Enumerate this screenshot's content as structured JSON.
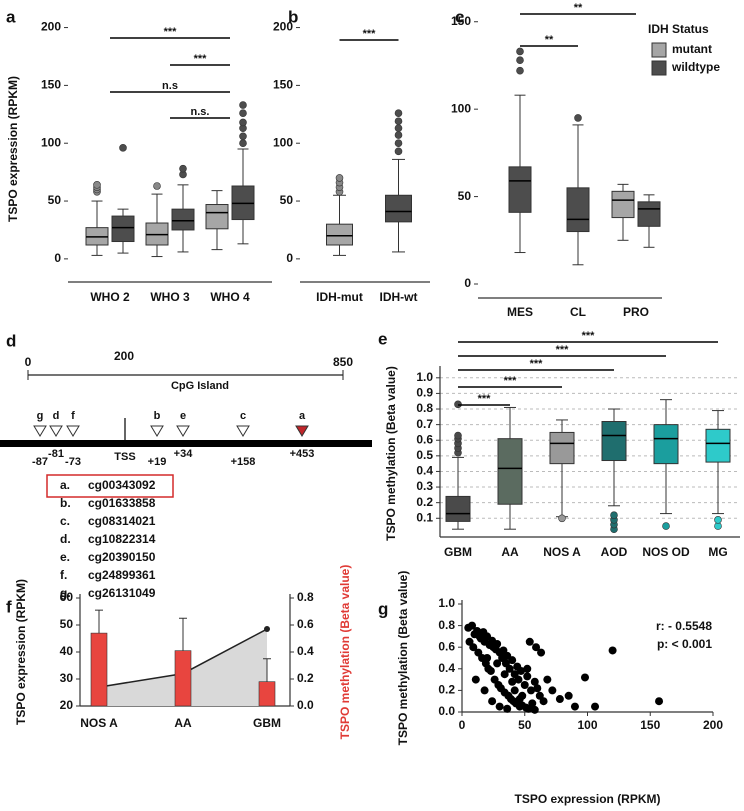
{
  "chart_data": [
    {
      "type": "box",
      "panel_label": "a",
      "ylabel": "TSPO expression (RPKM)",
      "categories": [
        "WHO 2",
        "WHO 3",
        "WHO 4"
      ],
      "series": [
        {
          "color": "#a6a6a6",
          "values": [
            {
              "min": 3,
              "q1": 12,
              "median": 19,
              "q3": 27,
              "max": 50,
              "outliers": [
                58,
                60,
                62,
                64
              ]
            },
            {
              "min": 2,
              "q1": 12,
              "median": 21,
              "q3": 31,
              "max": 56,
              "outliers": [
                63
              ]
            },
            {
              "min": 8,
              "q1": 26,
              "median": 40,
              "q3": 47,
              "max": 59,
              "outliers": []
            }
          ]
        },
        {
          "color": "#4d4d4d",
          "values": [
            {
              "min": 5,
              "q1": 15,
              "median": 27,
              "q3": 37,
              "max": 43,
              "outliers": [
                96
              ]
            },
            {
              "min": 6,
              "q1": 25,
              "median": 33,
              "q3": 43,
              "max": 64,
              "outliers": [
                73,
                78
              ]
            },
            {
              "min": 13,
              "q1": 34,
              "median": 48,
              "q3": 63,
              "max": 95,
              "outliers": [
                100,
                106,
                113,
                118,
                126,
                133
              ]
            }
          ]
        }
      ],
      "ylim": [
        -20,
        210
      ],
      "yticks": [
        0,
        50,
        100,
        150,
        200
      ],
      "annotations": [
        "***",
        "***",
        "n.s",
        "n.s."
      ]
    },
    {
      "type": "box",
      "panel_label": "b",
      "categories": [
        "IDH-mut",
        "IDH-wt"
      ],
      "series": [
        {
          "colors": [
            "#a6a6a6",
            "#4d4d4d"
          ],
          "values": [
            {
              "min": 3,
              "q1": 12,
              "median": 20,
              "q3": 30,
              "max": 55,
              "outliers": [
                58,
                62,
                66,
                70
              ]
            },
            {
              "min": 6,
              "q1": 32,
              "median": 41,
              "q3": 55,
              "max": 86,
              "outliers": [
                93,
                100,
                107,
                113,
                119,
                126
              ]
            }
          ]
        }
      ],
      "ylim": [
        -20,
        210
      ],
      "yticks": [
        0,
        50,
        100,
        150,
        200
      ],
      "annotations": [
        "***"
      ]
    },
    {
      "type": "box",
      "panel_label": "c",
      "legend_title": "IDH Status",
      "legend": "upper right",
      "categories": [
        "MES",
        "CL",
        "PRO"
      ],
      "series": [
        {
          "name": "mutant",
          "color": "#a6a6a6",
          "values": [
            null,
            null,
            {
              "min": 25,
              "q1": 38,
              "median": 48,
              "q3": 53,
              "max": 57,
              "outliers": []
            }
          ]
        },
        {
          "name": "wildtype",
          "color": "#4d4d4d",
          "values": [
            {
              "min": 18,
              "q1": 41,
              "median": 59,
              "q3": 67,
              "max": 108,
              "outliers": [
                122,
                128,
                133
              ]
            },
            {
              "min": 11,
              "q1": 30,
              "median": 37,
              "q3": 55,
              "max": 91,
              "outliers": [
                95
              ]
            },
            {
              "min": 21,
              "q1": 33,
              "median": 43,
              "q3": 47,
              "max": 51,
              "outliers": []
            }
          ]
        }
      ],
      "ylim": [
        -8,
        155
      ],
      "yticks": [
        0,
        50,
        100,
        150
      ],
      "annotations": [
        "**",
        "**"
      ]
    },
    {
      "type": "box",
      "panel_label": "e",
      "ylabel": "TSPO methylation (Beta value)",
      "categories": [
        "GBM",
        "AA",
        "NOS A",
        "AOD",
        "NOS OD",
        "MG"
      ],
      "series": [
        {
          "colors": [
            "#4a4a4a",
            "#5b6b60",
            "#999999",
            "#1f6e6e",
            "#1b9e9e",
            "#2ecaca"
          ],
          "values": [
            {
              "min": 0.03,
              "q1": 0.08,
              "median": 0.13,
              "q3": 0.24,
              "max": 0.49,
              "outliers": [
                0.52,
                0.55,
                0.58,
                0.61,
                0.63,
                0.83
              ]
            },
            {
              "min": 0.03,
              "q1": 0.19,
              "median": 0.42,
              "q3": 0.61,
              "max": 0.81,
              "outliers": []
            },
            {
              "min": 0.11,
              "q1": 0.45,
              "median": 0.58,
              "q3": 0.65,
              "max": 0.73,
              "outliers": [
                0.1
              ]
            },
            {
              "min": 0.18,
              "q1": 0.47,
              "median": 0.63,
              "q3": 0.72,
              "max": 0.8,
              "outliers": [
                0.03,
                0.06,
                0.09,
                0.12
              ]
            },
            {
              "min": 0.13,
              "q1": 0.45,
              "median": 0.61,
              "q3": 0.7,
              "max": 0.86,
              "outliers": [
                0.05
              ]
            },
            {
              "min": 0.13,
              "q1": 0.46,
              "median": 0.58,
              "q3": 0.67,
              "max": 0.79,
              "outliers": [
                0.05,
                0.09
              ]
            }
          ]
        }
      ],
      "ylim": [
        -0.02,
        1.05
      ],
      "yticks": [
        0.1,
        0.2,
        0.3,
        0.4,
        0.5,
        0.6,
        0.7,
        0.8,
        0.9,
        {
          "value": 1,
          "label": "1.0"
        }
      ],
      "grid": true,
      "annotations": [
        "***",
        "***",
        "***",
        "***",
        "***"
      ]
    },
    {
      "type": "bar",
      "panel_label": "f",
      "ylabel": "TSPO expression (RPKM)",
      "y2label": "TSPO methylation (Beta value)",
      "y2label_color": "#e03a35",
      "categories": [
        "NOS A",
        "AA",
        "GBM"
      ],
      "series": [
        {
          "color": "#e8453f",
          "values": [
            47,
            40.5,
            29
          ],
          "errors": [
            8.5,
            12,
            8.5
          ]
        },
        {
          "type": "line",
          "axis": "y2",
          "color": "#222222",
          "fill": "#d9d9d9",
          "values": [
            0.14,
            0.24,
            0.57
          ]
        }
      ],
      "ylim": [
        20,
        60
      ],
      "yticks": [
        20,
        30,
        40,
        50,
        60
      ],
      "y2lim": [
        0,
        0.8
      ],
      "y2ticks": [
        {
          "value": 0,
          "label": "0.0"
        },
        0.2,
        0.4,
        0.6,
        0.8
      ]
    },
    {
      "type": "scatter",
      "panel_label": "g",
      "xlabel": "TSPO expression (RPKM)",
      "ylabel": "TSPO methylation (Beta value)",
      "annotations": [
        "r: - 0.5548",
        "p: < 0.001"
      ],
      "color": "#000000",
      "x": [
        5,
        8,
        10,
        12,
        14,
        15,
        17,
        18,
        20,
        22,
        24,
        25,
        27,
        28,
        30,
        32,
        33,
        35,
        36,
        38,
        40,
        42,
        44,
        45,
        47,
        50,
        52,
        55,
        58,
        60,
        62,
        65,
        6,
        9,
        13,
        16,
        19,
        21,
        23,
        26,
        29,
        31,
        34,
        37,
        39,
        41,
        43,
        46,
        48,
        51,
        53,
        56,
        59,
        63,
        68,
        72,
        78,
        85,
        90,
        98,
        106,
        120,
        157,
        11,
        18,
        24,
        30,
        36,
        42,
        48,
        54,
        20,
        28,
        34,
        40,
        46,
        52,
        58
      ],
      "values": [
        0.78,
        0.8,
        0.72,
        0.75,
        0.7,
        0.68,
        0.74,
        0.65,
        0.7,
        0.62,
        0.66,
        0.6,
        0.58,
        0.63,
        0.55,
        0.5,
        0.57,
        0.45,
        0.52,
        0.4,
        0.48,
        0.35,
        0.42,
        0.3,
        0.38,
        0.25,
        0.33,
        0.2,
        0.28,
        0.22,
        0.15,
        0.1,
        0.65,
        0.6,
        0.55,
        0.5,
        0.45,
        0.4,
        0.38,
        0.3,
        0.25,
        0.22,
        0.18,
        0.15,
        0.12,
        0.1,
        0.08,
        0.05,
        0.06,
        0.04,
        0.03,
        0.08,
        0.6,
        0.55,
        0.3,
        0.2,
        0.12,
        0.15,
        0.05,
        0.32,
        0.05,
        0.57,
        0.1,
        0.3,
        0.2,
        0.1,
        0.05,
        0.03,
        0.2,
        0.15,
        0.65,
        0.5,
        0.45,
        0.35,
        0.28,
        0.12,
        0.4,
        0.02
      ],
      "xlim": [
        0,
        200
      ],
      "xticks": [
        0,
        50,
        100,
        150,
        200
      ],
      "ylim": [
        0,
        1
      ],
      "yticks": [
        {
          "value": 0,
          "label": "0.0"
        },
        0.2,
        0.4,
        0.6,
        0.8,
        {
          "value": 1,
          "label": "1.0"
        }
      ]
    }
  ],
  "cpg_diagram": {
    "panel_label": "d",
    "scale_labels": [
      0,
      200,
      850
    ],
    "title": "CpG Island",
    "tss": "TSS",
    "sites": [
      {
        "letter": "g",
        "position": "-87"
      },
      {
        "letter": "d",
        "position": "-81"
      },
      {
        "letter": "f",
        "position": "-73"
      },
      {
        "letter": "b",
        "position": "+19"
      },
      {
        "letter": "e",
        "position": "+34"
      },
      {
        "letter": "c",
        "position": "+158"
      },
      {
        "letter": "a",
        "position": "+453"
      }
    ],
    "probes": [
      {
        "letter": "a.",
        "id": "cg00343092"
      },
      {
        "letter": "b.",
        "id": "cg01633858"
      },
      {
        "letter": "c.",
        "id": "cg08314021"
      },
      {
        "letter": "d.",
        "id": "cg10822314"
      },
      {
        "letter": "e.",
        "id": "cg20390150"
      },
      {
        "letter": "f.",
        "id": "cg24899361"
      },
      {
        "letter": "g.",
        "id": "cg26131049"
      }
    ]
  }
}
